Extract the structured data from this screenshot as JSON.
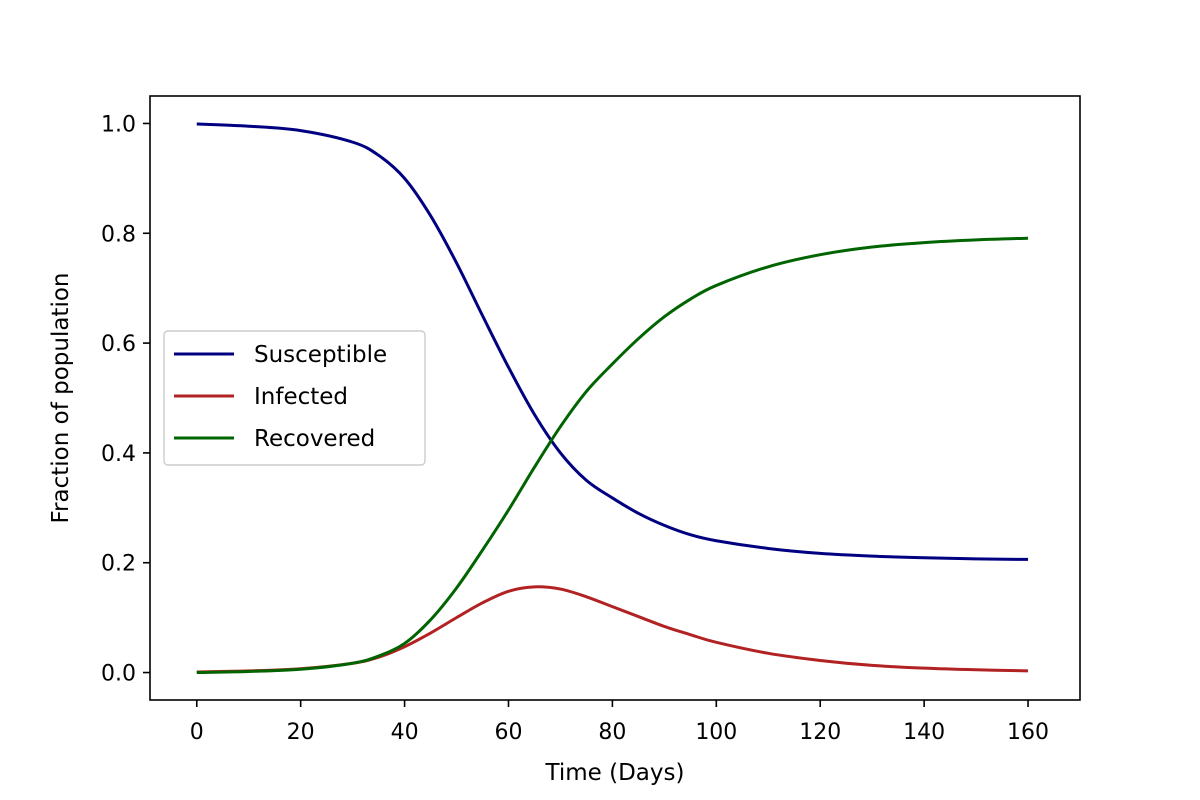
{
  "chart_data": {
    "type": "line",
    "title": "",
    "xlabel": "Time (Days)",
    "ylabel": "Fraction of population",
    "xlim": [
      -9,
      170
    ],
    "ylim": [
      -0.05,
      1.05
    ],
    "x_ticks": [
      0,
      20,
      40,
      60,
      80,
      100,
      120,
      140,
      160
    ],
    "y_ticks": [
      0.0,
      0.2,
      0.4,
      0.6,
      0.8,
      1.0
    ],
    "y_tick_labels": [
      "0.0",
      "0.2",
      "0.4",
      "0.6",
      "0.8",
      "1.0"
    ],
    "grid": false,
    "legend": {
      "position": "center-left"
    },
    "x": [
      0,
      10,
      20,
      30,
      35,
      40,
      45,
      50,
      55,
      60,
      65,
      70,
      75,
      80,
      85,
      90,
      95,
      100,
      110,
      120,
      130,
      140,
      150,
      160
    ],
    "series": [
      {
        "name": "Susceptible",
        "color": "#000080",
        "values": [
          0.999,
          0.995,
          0.987,
          0.966,
          0.942,
          0.9,
          0.832,
          0.746,
          0.65,
          0.556,
          0.47,
          0.4,
          0.35,
          0.318,
          0.29,
          0.268,
          0.251,
          0.24,
          0.226,
          0.217,
          0.212,
          0.209,
          0.207,
          0.206
        ]
      },
      {
        "name": "Infected",
        "color": "#b22222",
        "values": [
          0.001,
          0.003,
          0.007,
          0.017,
          0.028,
          0.047,
          0.072,
          0.1,
          0.127,
          0.148,
          0.156,
          0.152,
          0.138,
          0.12,
          0.102,
          0.084,
          0.069,
          0.055,
          0.035,
          0.022,
          0.013,
          0.008,
          0.005,
          0.003
        ]
      },
      {
        "name": "Recovered",
        "color": "#006400",
        "values": [
          0.0,
          0.002,
          0.006,
          0.017,
          0.03,
          0.053,
          0.096,
          0.154,
          0.223,
          0.296,
          0.374,
          0.448,
          0.512,
          0.562,
          0.608,
          0.648,
          0.68,
          0.705,
          0.739,
          0.761,
          0.775,
          0.783,
          0.788,
          0.791
        ]
      }
    ]
  }
}
